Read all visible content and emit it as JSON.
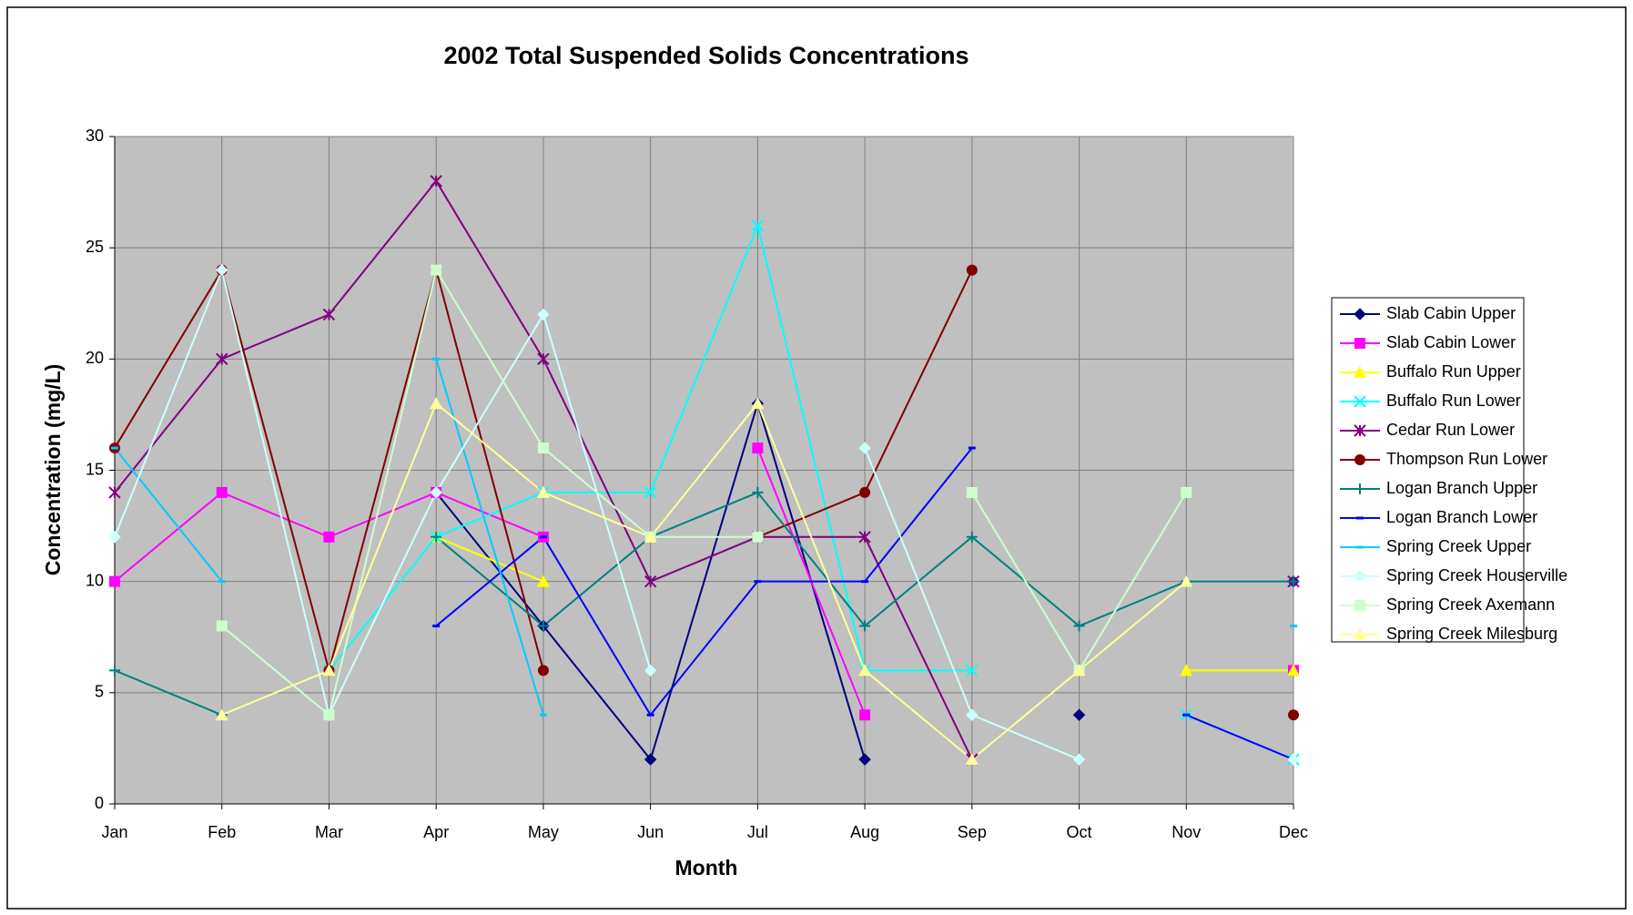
{
  "chart_data": {
    "type": "line",
    "title": "2002 Total Suspended Solids Concentrations",
    "x_label": "Month",
    "y_label": "Concentration (mg/L)",
    "categories": [
      "Jan",
      "Feb",
      "Mar",
      "Apr",
      "May",
      "Jun",
      "Jul",
      "Aug",
      "Sep",
      "Oct",
      "Nov",
      "Dec"
    ],
    "ylim": [
      0,
      30
    ],
    "yticks": [
      0,
      5,
      10,
      15,
      20,
      25,
      30
    ],
    "grid": true,
    "legend": "right",
    "series": [
      {
        "name": "Slab Cabin Upper",
        "color": "#000080",
        "marker": "diamond",
        "values": [
          null,
          null,
          null,
          14,
          8,
          2,
          18,
          2,
          null,
          4,
          null,
          10
        ]
      },
      {
        "name": "Slab Cabin Lower",
        "color": "#ff00ff",
        "marker": "square",
        "values": [
          10,
          14,
          12,
          14,
          12,
          null,
          16,
          4,
          null,
          null,
          null,
          6
        ]
      },
      {
        "name": "Buffalo Run Upper",
        "color": "#ffff00",
        "marker": "triangle",
        "values": [
          null,
          null,
          null,
          12,
          10,
          null,
          null,
          null,
          null,
          null,
          6,
          6
        ]
      },
      {
        "name": "Buffalo Run Lower",
        "color": "#00ffff",
        "marker": "x",
        "values": [
          null,
          null,
          6,
          12,
          14,
          14,
          26,
          6,
          6,
          null,
          4,
          2
        ]
      },
      {
        "name": "Cedar Run Lower",
        "color": "#800080",
        "marker": "star",
        "values": [
          14,
          20,
          22,
          28,
          20,
          10,
          12,
          12,
          2,
          null,
          null,
          10
        ]
      },
      {
        "name": "Thompson Run Lower",
        "color": "#800000",
        "marker": "circle",
        "values": [
          16,
          24,
          6,
          24,
          6,
          null,
          12,
          14,
          24,
          null,
          null,
          4
        ]
      },
      {
        "name": "Logan Branch Upper",
        "color": "#008080",
        "marker": "plus",
        "values": [
          6,
          4,
          null,
          12,
          8,
          12,
          14,
          8,
          12,
          8,
          10,
          10
        ]
      },
      {
        "name": "Logan Branch Lower",
        "color": "#0000ff",
        "marker": "dash",
        "values": [
          null,
          null,
          null,
          8,
          12,
          4,
          10,
          10,
          16,
          null,
          4,
          2
        ]
      },
      {
        "name": "Spring Creek Upper",
        "color": "#00ccff",
        "marker": "dash",
        "values": [
          16,
          10,
          null,
          20,
          4,
          null,
          null,
          null,
          null,
          null,
          null,
          8
        ]
      },
      {
        "name": "Spring Creek Houserville",
        "color": "#ccffff",
        "marker": "diamond",
        "values": [
          12,
          24,
          4,
          14,
          22,
          6,
          null,
          16,
          4,
          2,
          null,
          2
        ]
      },
      {
        "name": "Spring Creek Axemann",
        "color": "#ccffcc",
        "marker": "square",
        "values": [
          null,
          8,
          4,
          24,
          16,
          12,
          12,
          null,
          14,
          6,
          14,
          null
        ]
      },
      {
        "name": "Spring Creek Milesburg",
        "color": "#ffff99",
        "marker": "triangle",
        "values": [
          null,
          4,
          6,
          18,
          14,
          12,
          18,
          6,
          2,
          6,
          10,
          null
        ]
      }
    ]
  }
}
